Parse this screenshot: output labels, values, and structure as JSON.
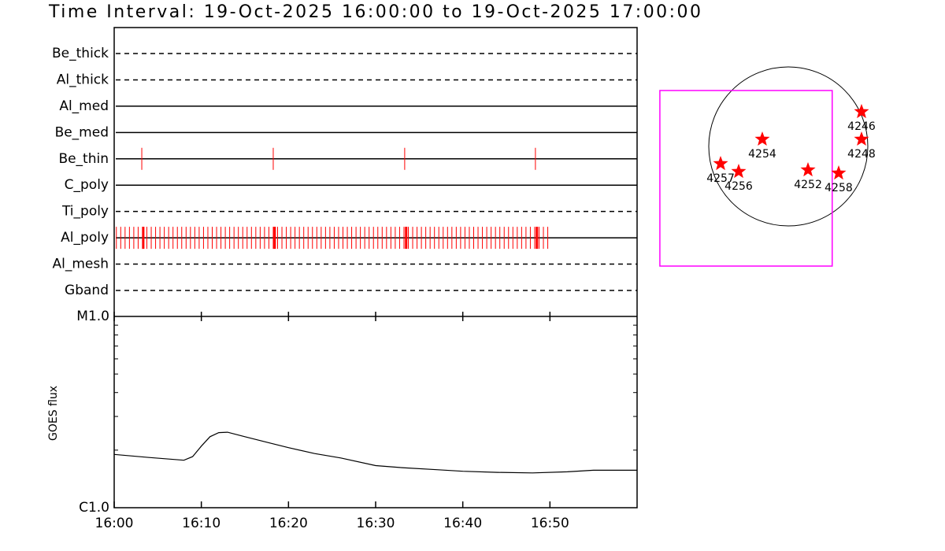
{
  "title": "Time Interval: 19-Oct-2025 16:00:00 to 19-Oct-2025 17:00:00",
  "chart_data": [
    {
      "type": "timeline",
      "xlim": [
        "16:00:00",
        "17:00:00"
      ],
      "mark_color": "#ff0000",
      "rows": [
        {
          "name": "Be_thick",
          "style": "dashed",
          "times": []
        },
        {
          "name": "Al_thick",
          "style": "dashed",
          "times": []
        },
        {
          "name": "Al_med",
          "style": "solid",
          "times": []
        },
        {
          "name": "Be_med",
          "style": "solid",
          "times": []
        },
        {
          "name": "Be_thin",
          "style": "solid",
          "times": [
            "16:03:10",
            "16:18:15",
            "16:33:20",
            "16:48:20"
          ]
        },
        {
          "name": "C_poly",
          "style": "solid",
          "times": []
        },
        {
          "name": "Ti_poly",
          "style": "dashed",
          "times": []
        },
        {
          "name": "Al_poly",
          "style": "solid",
          "bold_times": [
            "16:03:20",
            "16:18:25",
            "16:33:30",
            "16:48:30"
          ],
          "times": [
            "16:00:15",
            "16:00:45",
            "16:01:15",
            "16:01:45",
            "16:02:15",
            "16:02:45",
            "16:03:15",
            "16:03:45",
            "16:04:15",
            "16:04:45",
            "16:05:15",
            "16:05:45",
            "16:06:15",
            "16:06:45",
            "16:07:15",
            "16:07:45",
            "16:08:15",
            "16:08:45",
            "16:09:15",
            "16:09:45",
            "16:10:15",
            "16:10:45",
            "16:11:15",
            "16:11:45",
            "16:12:15",
            "16:12:45",
            "16:13:15",
            "16:13:45",
            "16:14:15",
            "16:14:45",
            "16:15:15",
            "16:15:45",
            "16:16:15",
            "16:16:45",
            "16:17:15",
            "16:17:45",
            "16:18:15",
            "16:18:45",
            "16:19:15",
            "16:19:45",
            "16:20:15",
            "16:20:45",
            "16:21:15",
            "16:21:45",
            "16:22:15",
            "16:22:45",
            "16:23:15",
            "16:23:45",
            "16:24:15",
            "16:24:45",
            "16:25:15",
            "16:25:45",
            "16:26:15",
            "16:26:45",
            "16:27:15",
            "16:27:45",
            "16:28:15",
            "16:28:45",
            "16:29:15",
            "16:29:45",
            "16:30:15",
            "16:30:45",
            "16:31:15",
            "16:31:45",
            "16:32:15",
            "16:32:45",
            "16:33:15",
            "16:33:45",
            "16:34:15",
            "16:34:45",
            "16:35:15",
            "16:35:45",
            "16:36:15",
            "16:36:45",
            "16:37:15",
            "16:37:45",
            "16:38:15",
            "16:38:45",
            "16:39:15",
            "16:39:45",
            "16:40:15",
            "16:40:45",
            "16:41:15",
            "16:41:45",
            "16:42:15",
            "16:42:45",
            "16:43:15",
            "16:43:45",
            "16:44:15",
            "16:44:45",
            "16:45:15",
            "16:45:45",
            "16:46:15",
            "16:46:45",
            "16:47:15",
            "16:47:45",
            "16:48:15",
            "16:48:45",
            "16:49:15",
            "16:49:45"
          ]
        },
        {
          "name": "Al_mesh",
          "style": "dashed",
          "times": []
        },
        {
          "name": "Gband",
          "style": "dashed",
          "times": []
        }
      ]
    },
    {
      "type": "line",
      "ylabel": "GOES flux",
      "log": true,
      "color": "#000000",
      "x": [
        "16:00",
        "16:04",
        "16:08",
        "16:09",
        "16:10",
        "16:11",
        "16:12",
        "16:13",
        "16:15",
        "16:18",
        "16:20",
        "16:23",
        "16:26",
        "16:30",
        "16:33",
        "16:37",
        "16:40",
        "16:44",
        "16:48",
        "16:52",
        "16:55",
        "17:00"
      ],
      "values": [
        1.9e-06,
        1.83e-06,
        1.77e-06,
        1.85e-06,
        2.1e-06,
        2.35e-06,
        2.47e-06,
        2.48e-06,
        2.35e-06,
        2.17e-06,
        2.06e-06,
        1.92e-06,
        1.82e-06,
        1.66e-06,
        1.62e-06,
        1.58e-06,
        1.55e-06,
        1.53e-06,
        1.52e-06,
        1.54e-06,
        1.57e-06,
        1.57e-06
      ],
      "xlim": [
        "16:00",
        "17:00"
      ],
      "xticks": [
        "16:00",
        "16:10",
        "16:20",
        "16:30",
        "16:40",
        "16:50"
      ],
      "ylim": [
        1e-06,
        1e-05
      ],
      "yticks": [
        {
          "value": 1e-06,
          "label": "C1.0"
        },
        {
          "value": 1e-05,
          "label": "M1.0"
        }
      ],
      "yminor": [
        2e-06,
        3e-06,
        4e-06,
        5e-06,
        6e-06,
        7e-06,
        8e-06,
        9e-06
      ]
    },
    {
      "type": "scatter",
      "radius": 960,
      "color": "#ff0000",
      "fov_color": "#ff00ff",
      "fov": {
        "x": -510,
        "y": -385,
        "width": 2080,
        "height": 2120
      },
      "regions": [
        {
          "label": "4246",
          "x": 884,
          "y": 418
        },
        {
          "label": "4248",
          "x": 884,
          "y": 86
        },
        {
          "label": "4254",
          "x": -314,
          "y": 86
        },
        {
          "label": "4257",
          "x": -817,
          "y": -209
        },
        {
          "label": "4256",
          "x": -599,
          "y": -304
        },
        {
          "label": "4252",
          "x": 238,
          "y": -285
        },
        {
          "label": "4258",
          "x": 608,
          "y": -323
        }
      ]
    }
  ]
}
